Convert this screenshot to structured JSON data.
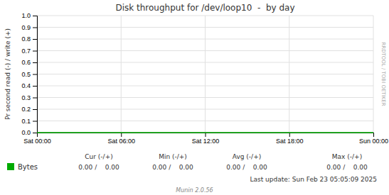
{
  "chart_data": {
    "type": "line",
    "title": "Disk throughput for /dev/loop10  -  by day",
    "ylabel": "Pr second read (-) / write (+)",
    "categories": [
      "Sat 00:00",
      "Sat 06:00",
      "Sat 12:00",
      "Sat 18:00",
      "Sun 00:00"
    ],
    "series": [
      {
        "name": "Bytes",
        "color": "#00aa00",
        "values": [
          0,
          0,
          0,
          0,
          0
        ]
      }
    ],
    "ylim": [
      0,
      1
    ],
    "yticks": [
      {
        "value": 0,
        "label": "0.0"
      },
      0.1,
      0.2,
      0.3,
      0.4,
      0.5,
      0.6,
      0.7,
      0.8,
      0.9,
      {
        "value": 1,
        "label": "1.0"
      }
    ],
    "grid": true,
    "legend": "bottom",
    "annotations": [
      "Cur (-/+)",
      "Min (-/+)",
      "Avg (-/+)",
      "Max (-/+)",
      "0.00 /    0.00",
      "0.00 /    0.00",
      "0.00 /    0.00",
      "0.00 /    0.00",
      "Last update: Sun Feb 23 05:05:09 2025",
      "Munin 2.0.56",
      "RRDTOOL / TOBI OETIKER"
    ]
  }
}
